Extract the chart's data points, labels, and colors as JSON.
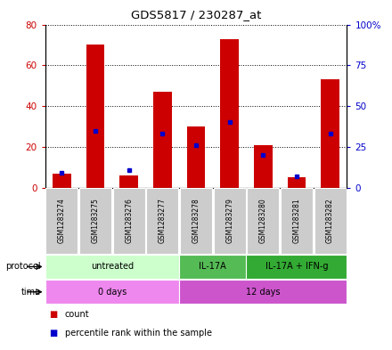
{
  "title": "GDS5817 / 230287_at",
  "samples": [
    "GSM1283274",
    "GSM1283275",
    "GSM1283276",
    "GSM1283277",
    "GSM1283278",
    "GSM1283279",
    "GSM1283280",
    "GSM1283281",
    "GSM1283282"
  ],
  "count_values": [
    7,
    70,
    6,
    47,
    30,
    73,
    21,
    5,
    53
  ],
  "percentile_values": [
    9,
    35,
    11,
    33,
    26,
    40,
    20,
    7,
    33
  ],
  "ylim_left": [
    0,
    80
  ],
  "ylim_right": [
    0,
    100
  ],
  "yticks_left": [
    0,
    20,
    40,
    60,
    80
  ],
  "ytick_labels_left": [
    "0",
    "20",
    "40",
    "60",
    "80"
  ],
  "yticks_right": [
    0,
    25,
    50,
    75,
    100
  ],
  "ytick_labels_right": [
    "0",
    "25",
    "50",
    "75",
    "100%"
  ],
  "bar_color": "#cc0000",
  "dot_color": "#0000cc",
  "left_tick_color": "#cc0000",
  "right_tick_color": "#0000cc",
  "protocol_groups": [
    {
      "label": "untreated",
      "start": 0,
      "end": 4,
      "color": "#ccffcc"
    },
    {
      "label": "IL-17A",
      "start": 4,
      "end": 6,
      "color": "#55bb55"
    },
    {
      "label": "IL-17A + IFN-g",
      "start": 6,
      "end": 9,
      "color": "#33aa33"
    }
  ],
  "time_groups": [
    {
      "label": "0 days",
      "start": 0,
      "end": 4,
      "color": "#ee88ee"
    },
    {
      "label": "12 days",
      "start": 4,
      "end": 9,
      "color": "#cc55cc"
    }
  ],
  "sample_bg_color": "#cccccc",
  "plot_bg_color": "#ffffff",
  "grid_color": "#000000"
}
